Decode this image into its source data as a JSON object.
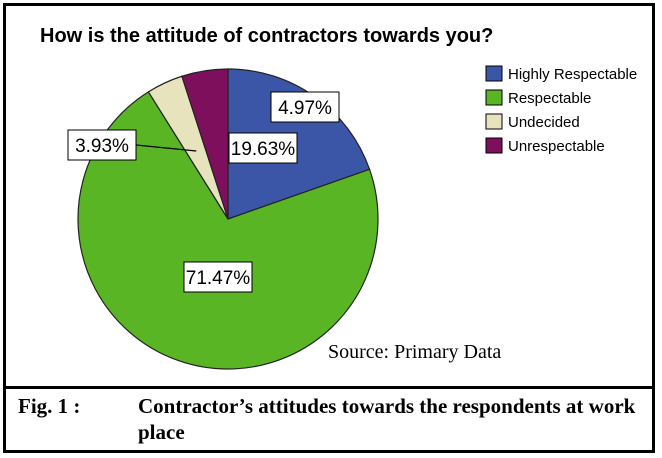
{
  "chart_data": {
    "type": "pie",
    "title": "How is the attitude of contractors towards you?",
    "categories": [
      "Highly Respectable",
      "Respectable",
      "Undecided",
      "Unrespectable"
    ],
    "values": [
      19.63,
      71.47,
      3.93,
      4.97
    ],
    "data_labels": [
      "19.63%",
      "71.47%",
      "3.93%",
      "4.97%"
    ],
    "colors": [
      "#3b56a6",
      "#5ab524",
      "#e6e3bd",
      "#7e0f5c"
    ],
    "legend_position": "right",
    "annotation": "Source: Primary Data"
  },
  "caption": {
    "number": "Fig. 1 :",
    "text": "Contractor’s attitudes towards the respondents at work place"
  }
}
